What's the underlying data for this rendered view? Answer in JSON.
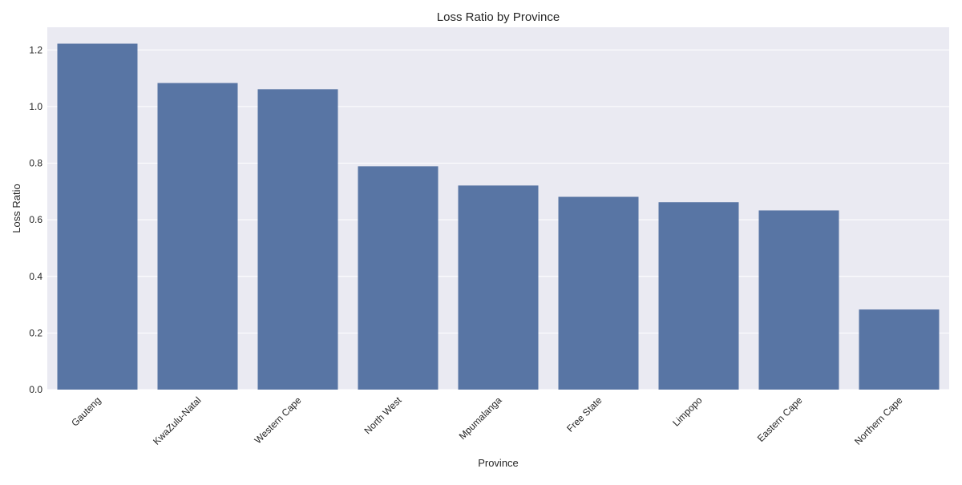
{
  "chart_data": {
    "type": "bar",
    "title": "Loss Ratio by Province",
    "xlabel": "Province",
    "ylabel": "Loss Ratio",
    "categories": [
      "Gauteng",
      "KwaZulu-Natal",
      "Western Cape",
      "North West",
      "Mpumalanga",
      "Free State",
      "Limpopo",
      "Eastern Cape",
      "Northern Cape"
    ],
    "values": [
      1.222,
      1.083,
      1.061,
      0.789,
      0.721,
      0.681,
      0.662,
      0.633,
      0.283
    ],
    "ylim": [
      0,
      1.28
    ],
    "yticks": [
      0.0,
      0.2,
      0.4,
      0.6,
      0.8,
      1.0,
      1.2
    ],
    "ytick_labels": [
      "0.0",
      "0.2",
      "0.4",
      "0.6",
      "0.8",
      "1.0",
      "1.2"
    ],
    "grid": true,
    "colors": {
      "bar": "#5875a4",
      "plot_bg": "#eaeaf2",
      "grid": "#ffffff"
    }
  }
}
